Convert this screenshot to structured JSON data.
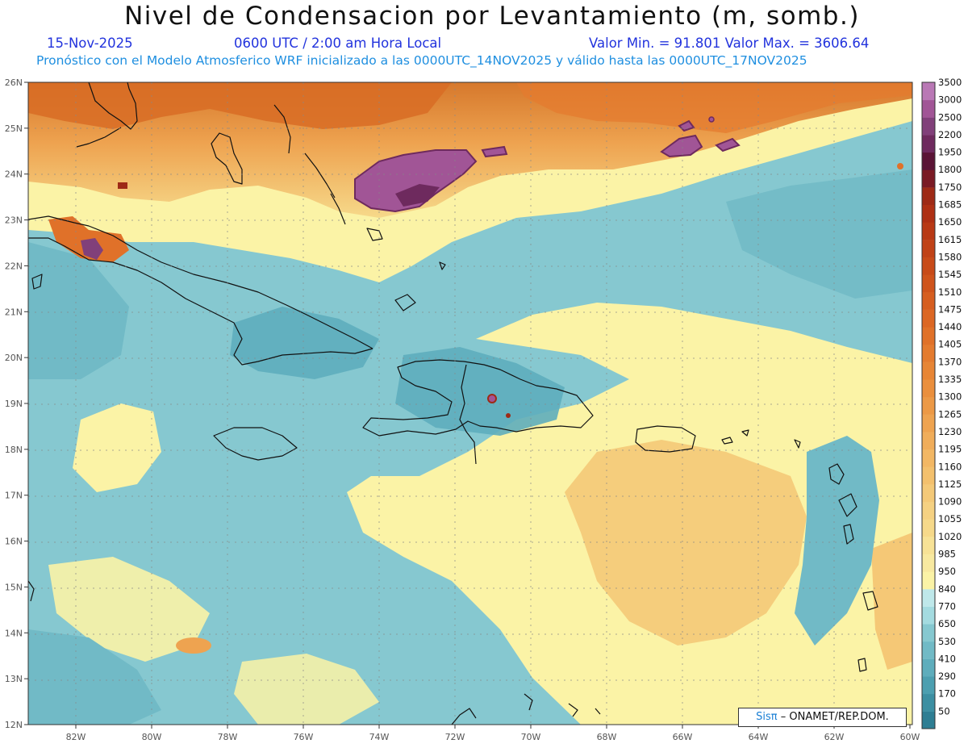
{
  "header": {
    "title": "Nivel de Condensacion por Levantamiento (m, somb.)",
    "date": "15-Nov-2025",
    "time": "0600 UTC / 2:00 am Hora Local",
    "minmax": "Valor Min. = 91.801  Valor Max. = 3606.64",
    "forecast": "Pronóstico con el Modelo Atmosferico WRF inicializado a las 0000UTC_14NOV2025 y válido hasta las  0000UTC_17NOV2025"
  },
  "lat_labels": [
    "26N",
    "25N",
    "24N",
    "23N",
    "22N",
    "21N",
    "20N",
    "19N",
    "18N",
    "17N",
    "16N",
    "15N",
    "14N",
    "13N",
    "12N"
  ],
  "lon_labels": [
    "82W",
    "80W",
    "78W",
    "76W",
    "74W",
    "72W",
    "70W",
    "68W",
    "66W",
    "64W",
    "62W",
    "60W"
  ],
  "colorbar": {
    "levels": [
      "50",
      "170",
      "290",
      "410",
      "530",
      "650",
      "770",
      "840",
      "950",
      "985",
      "1020",
      "1055",
      "1090",
      "1125",
      "1160",
      "1195",
      "1230",
      "1265",
      "1300",
      "1335",
      "1370",
      "1405",
      "1440",
      "1475",
      "1510",
      "1545",
      "1580",
      "1615",
      "1650",
      "1685",
      "1750",
      "1800",
      "1950",
      "2200",
      "2500",
      "3000",
      "3500"
    ],
    "colors": [
      "#2e7e93",
      "#3c8fa2",
      "#4c9fb0",
      "#5eadbc",
      "#71bac6",
      "#86c8d0",
      "#a4dbe0",
      "#bfe8ea",
      "#fbf3a6",
      "#f8e9a0",
      "#f7e296",
      "#f6d98a",
      "#f5d182",
      "#f4c978",
      "#f3c06d",
      "#f2b764",
      "#f0ad5a",
      "#eea350",
      "#ec9946",
      "#ea8f3d",
      "#e78535",
      "#e47b2f",
      "#e07129",
      "#dc6724",
      "#d65e20",
      "#cf541c",
      "#c84b19",
      "#c04217",
      "#b83915",
      "#ae3014",
      "#9e2a16",
      "#7a1a24",
      "#5a1436",
      "#6e2a5e",
      "#81407a",
      "#a15596",
      "#b978b5"
    ]
  },
  "credit": {
    "brand": "Sisπ",
    "org": "– ONAMET/REP.DOM."
  },
  "colors": {
    "header_blue": "#2233dd",
    "forecast_blue": "#1f8fe0"
  }
}
